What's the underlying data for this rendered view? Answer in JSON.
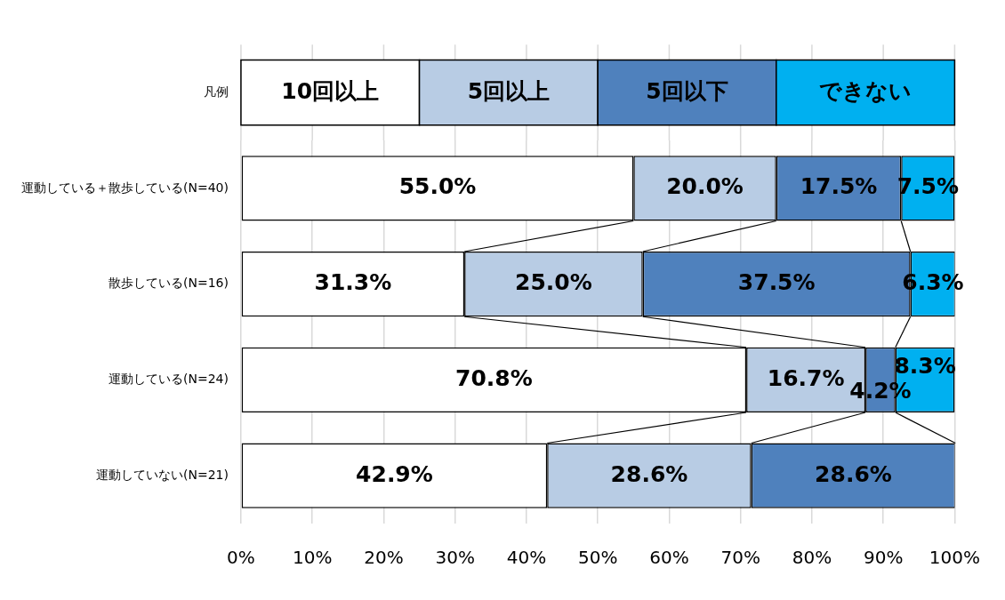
{
  "chart_data": {
    "type": "bar",
    "orientation": "horizontal",
    "stacked": true,
    "categories": [
      "運動している＋散歩している(N=40)",
      "散歩している(N=16)",
      "運動している(N=24)",
      "運動していない(N=21)"
    ],
    "series": [
      {
        "name": "10回以上",
        "color": "#ffffff",
        "values": [
          55.0,
          31.3,
          70.8,
          42.9
        ],
        "value_labels": [
          "55.0%",
          "31.3%",
          "70.8%",
          "42.9%"
        ]
      },
      {
        "name": "5回以上",
        "color": "#b8cce4",
        "values": [
          20.0,
          25.0,
          16.7,
          28.6
        ],
        "value_labels": [
          "20.0%",
          "25.0%",
          "16.7%",
          "28.6%"
        ]
      },
      {
        "name": "5回以下",
        "color": "#4f81bd",
        "values": [
          17.5,
          37.5,
          4.2,
          28.6
        ],
        "value_labels": [
          "17.5%",
          "37.5%",
          "4.2%",
          "28.6%"
        ]
      },
      {
        "name": "できない",
        "color": "#00b0f0",
        "values": [
          7.5,
          6.3,
          8.3,
          0
        ],
        "value_labels": [
          "7.5%",
          "6.3%",
          "8.3%",
          null
        ]
      }
    ],
    "xlim": [
      0,
      100
    ],
    "xticks": [
      {
        "value": 0,
        "label": "0%"
      },
      {
        "value": 10,
        "label": "10%"
      },
      {
        "value": 20,
        "label": "20%"
      },
      {
        "value": 30,
        "label": "30%"
      },
      {
        "value": 40,
        "label": "40%"
      },
      {
        "value": 50,
        "label": "50%"
      },
      {
        "value": 60,
        "label": "60%"
      },
      {
        "value": 70,
        "label": "70%"
      },
      {
        "value": 80,
        "label": "80%"
      },
      {
        "value": 90,
        "label": "90%"
      },
      {
        "value": 100,
        "label": "100%"
      }
    ],
    "grid": "x",
    "legend": "top",
    "legend_title": "凡例"
  }
}
